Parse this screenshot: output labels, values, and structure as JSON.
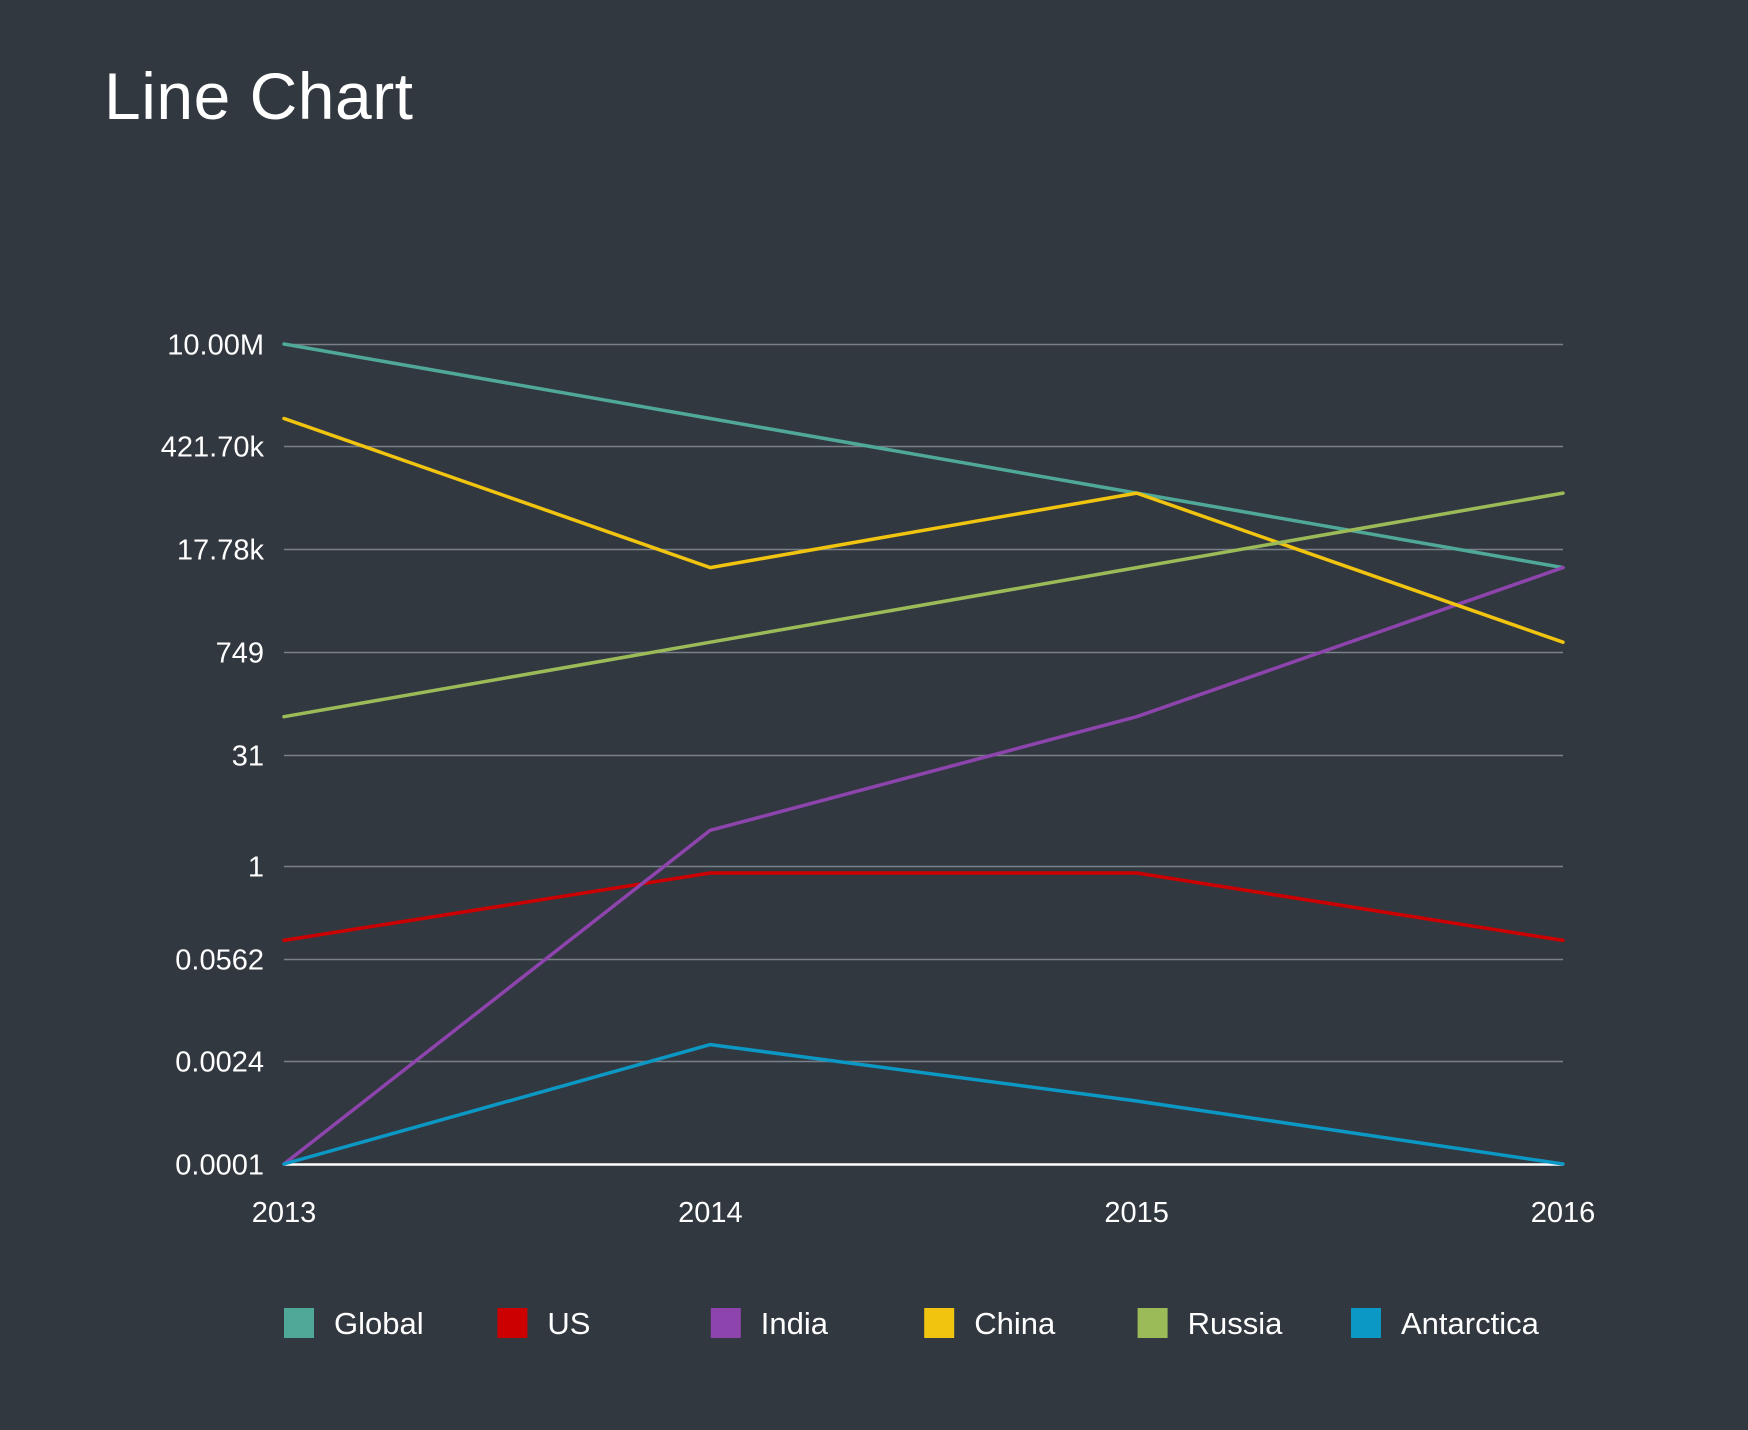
{
  "chart_data": {
    "type": "line",
    "title": "Line Chart",
    "xlabel": "",
    "ylabel": "",
    "x": [
      "2013",
      "2014",
      "2015",
      "2016"
    ],
    "y_scale": "log",
    "ylim": [
      0.0001,
      10000000
    ],
    "y_ticks": [
      {
        "value": 10000000,
        "label": "10.00M"
      },
      {
        "value": 421700,
        "label": "421.70k"
      },
      {
        "value": 17780,
        "label": "17.78k"
      },
      {
        "value": 749,
        "label": "749"
      },
      {
        "value": 31,
        "label": "31"
      },
      {
        "value": 1,
        "label": "1"
      },
      {
        "value": 0.0562,
        "label": "0.0562"
      },
      {
        "value": 0.0024,
        "label": "0.0024"
      },
      {
        "value": 0.0001,
        "label": "0.0001"
      }
    ],
    "grid": true,
    "legend_position": "bottom",
    "series": [
      {
        "name": "Global",
        "color": "#4fa898",
        "values": [
          10000000,
          1000000,
          100000,
          10000
        ]
      },
      {
        "name": "US",
        "color": "#cc0000",
        "values": [
          0.1,
          0.8,
          0.8,
          0.1
        ]
      },
      {
        "name": "India",
        "color": "#8e44ad",
        "values": [
          0.0001,
          3,
          100,
          10000
        ]
      },
      {
        "name": "China",
        "color": "#f1c40f",
        "values": [
          1000000,
          10000,
          100000,
          1000
        ]
      },
      {
        "name": "Russia",
        "color": "#9bbb59",
        "values": [
          100,
          1000,
          10000,
          100000
        ]
      },
      {
        "name": "Antarctica",
        "color": "#0c98c4",
        "values": [
          0.0001,
          0.004,
          0.0007,
          0.0001
        ]
      }
    ]
  }
}
